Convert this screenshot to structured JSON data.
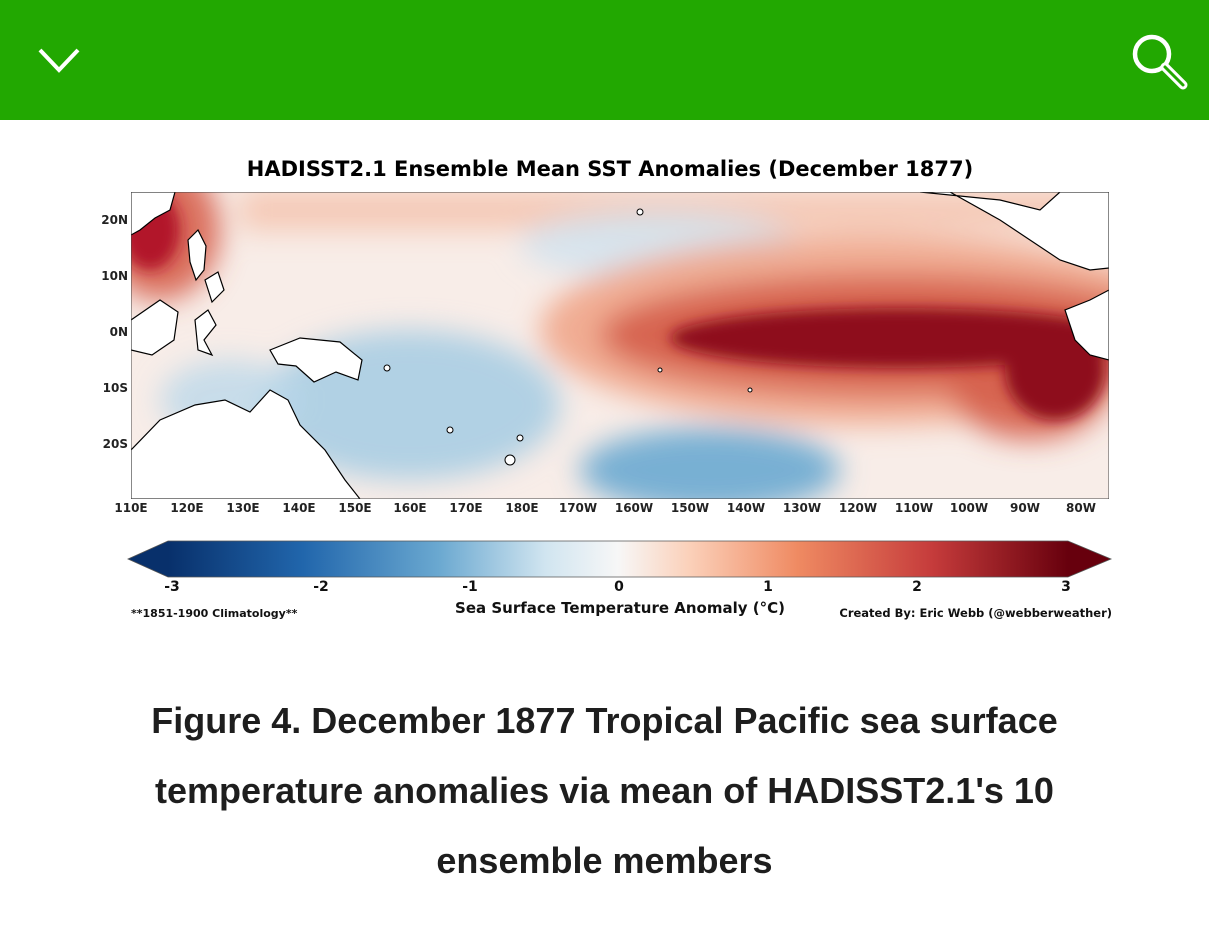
{
  "header": {
    "background_color": "#22a801",
    "menu_icon": "chevron-down-icon",
    "search_icon": "search-icon"
  },
  "figure": {
    "title": "HADISST2.1 Ensemble Mean SST Anomalies (December 1877)",
    "lat_labels": [
      "20N",
      "10N",
      "0N",
      "10S",
      "20S"
    ],
    "lon_labels": [
      "110E",
      "120E",
      "130E",
      "140E",
      "150E",
      "160E",
      "170E",
      "180E",
      "170W",
      "160W",
      "150W",
      "140W",
      "130W",
      "120W",
      "110W",
      "100W",
      "90W",
      "80W"
    ],
    "colorbar": {
      "ticks": [
        "-3",
        "-2",
        "-1",
        "0",
        "1",
        "2",
        "3"
      ],
      "label": "Sea Surface Temperature Anomaly (°C)",
      "colors": {
        "cold": "#08306b",
        "neutral": "#f7f7f7",
        "warm": "#67000d"
      }
    },
    "note_left": "**1851-1900 Climatology**",
    "credit": "Created By: Eric Webb (@webberweather)"
  },
  "caption": {
    "line1": "Figure 4. December 1877 Tropical Pacific sea surface",
    "line2": "temperature anomalies via mean of HADISST2.1's 10",
    "line3": "ensemble members"
  }
}
